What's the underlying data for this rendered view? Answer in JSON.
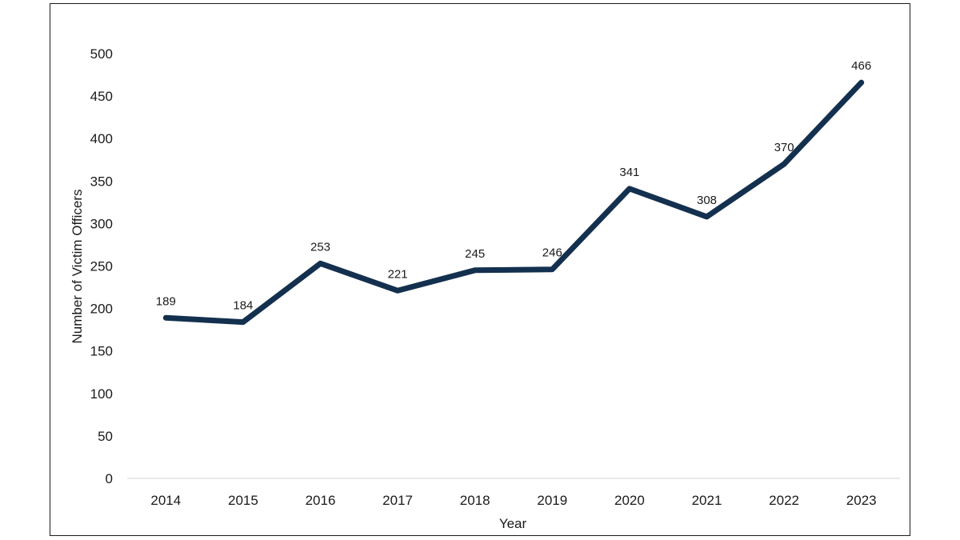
{
  "chart_data": {
    "type": "line",
    "title": "",
    "xlabel": "Year",
    "ylabel": "Number of Victim Officers",
    "categories": [
      "2014",
      "2015",
      "2016",
      "2017",
      "2018",
      "2019",
      "2020",
      "2021",
      "2022",
      "2023"
    ],
    "series": [
      {
        "values": [
          189,
          184,
          253,
          221,
          245,
          246,
          341,
          308,
          370,
          466
        ]
      }
    ],
    "data_labels": [
      "189",
      "184",
      "253",
      "221",
      "245",
      "246",
      "341",
      "308",
      "370",
      "466"
    ],
    "yticks": [
      "0",
      "50",
      "100",
      "150",
      "200",
      "250",
      "300",
      "350",
      "400",
      "450",
      "500"
    ],
    "ylim": [
      0,
      500
    ],
    "grid": false,
    "legend": "none",
    "line_color": "#14304f",
    "axis_color": "#d0d0d0"
  }
}
